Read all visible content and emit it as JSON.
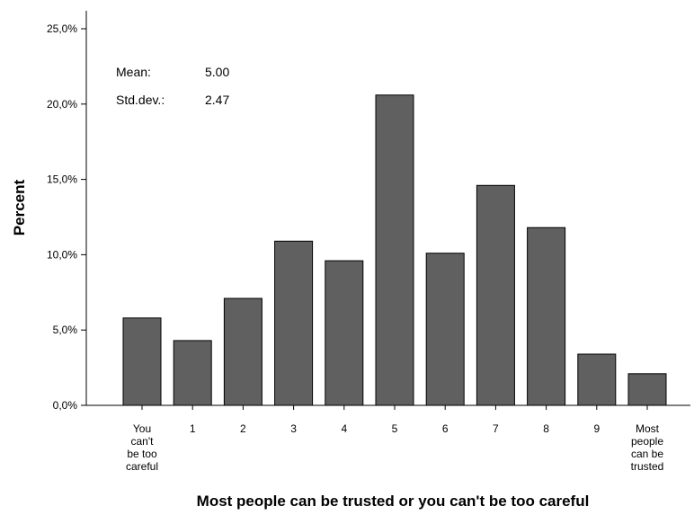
{
  "chart_data": {
    "type": "bar",
    "xlabel": "Most people can be trusted or you can't be too careful",
    "ylabel": "Percent",
    "categories": [
      [
        "You",
        "can't",
        "be too",
        "careful"
      ],
      [
        "1"
      ],
      [
        "2"
      ],
      [
        "3"
      ],
      [
        "4"
      ],
      [
        "5"
      ],
      [
        "6"
      ],
      [
        "7"
      ],
      [
        "8"
      ],
      [
        "9"
      ],
      [
        "Most",
        "people",
        "can be",
        "trusted"
      ]
    ],
    "values": [
      5.8,
      4.3,
      7.1,
      10.9,
      9.6,
      20.6,
      10.1,
      14.6,
      11.8,
      3.4,
      2.1
    ],
    "ylim": [
      0,
      25
    ],
    "yticks": [
      0,
      5,
      10,
      15,
      20,
      25
    ],
    "ytick_labels": [
      "0,0%",
      "5,0%",
      "10,0%",
      "15,0%",
      "20,0%",
      "25,0%"
    ],
    "grid": false,
    "bar_color": "#606060",
    "stats": {
      "mean_label": "Mean:",
      "mean_value": "5.00",
      "std_label": "Std.dev.:",
      "std_value": "2.47"
    }
  }
}
